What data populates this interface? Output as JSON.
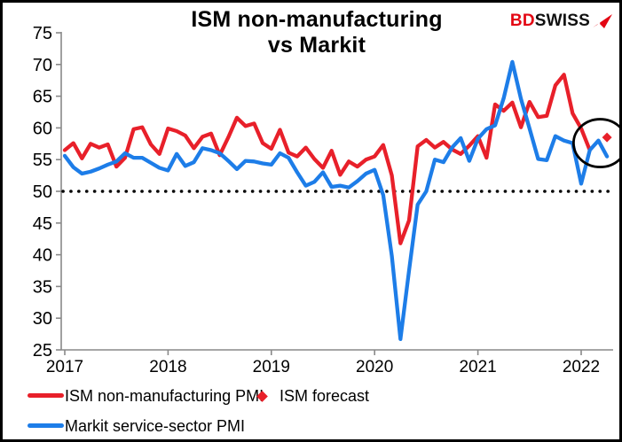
{
  "title": {
    "line1": "ISM non-manufacturing",
    "line2": "vs Markit"
  },
  "logo": {
    "part1": "BD",
    "part2": "SWISS",
    "arrow_icon": "red-swiss-arrow",
    "red": "#e30613"
  },
  "colors": {
    "ism_red": "#e8202a",
    "markit_blue": "#1d7de8",
    "axis_gray": "#898989",
    "reference_black": "#000000"
  },
  "legend": {
    "ism": {
      "label": "ISM non-manufacturing PMI"
    },
    "forecast": {
      "label": "ISM forecast"
    },
    "markit": {
      "label": "Markit service-sector PMI"
    }
  },
  "chart_data": {
    "type": "line",
    "title": "ISM non-manufacturing vs Markit",
    "frequency": "monthly",
    "x_start": "2017-01",
    "x_end": "2022-04",
    "x_tick_labels": [
      "2017",
      "2018",
      "2019",
      "2020",
      "2021",
      "2022"
    ],
    "y_ticks": [
      25,
      30,
      35,
      40,
      45,
      50,
      55,
      60,
      65,
      70,
      75
    ],
    "ylim": [
      25,
      75
    ],
    "grid": false,
    "legend_position": "bottom",
    "reference_line": {
      "value": 50,
      "style": "dotted",
      "color": "#000000"
    },
    "series": [
      {
        "name": "Markit service-sector PMI",
        "color": "#1d7de8",
        "values": [
          55.6,
          53.8,
          52.8,
          53.1,
          53.6,
          54.2,
          54.7,
          56.0,
          55.3,
          55.3,
          54.5,
          53.7,
          53.3,
          55.9,
          54.0,
          54.6,
          56.8,
          56.5,
          56.0,
          54.8,
          53.5,
          54.8,
          54.7,
          54.4,
          54.2,
          56.0,
          55.3,
          53.0,
          50.9,
          51.5,
          53.0,
          50.7,
          50.9,
          50.6,
          51.6,
          52.8,
          53.4,
          49.4,
          39.8,
          26.7,
          37.5,
          47.9,
          50.0,
          55.0,
          54.6,
          56.9,
          58.4,
          54.8,
          58.3,
          59.8,
          60.4,
          64.7,
          70.4,
          64.6,
          59.9,
          55.1,
          54.9,
          58.7,
          58.0,
          57.6,
          51.2,
          56.5,
          58.0,
          55.5
        ]
      },
      {
        "name": "ISM non-manufacturing PMI",
        "color": "#e8202a",
        "values": [
          56.5,
          57.6,
          55.2,
          57.5,
          56.9,
          57.4,
          53.9,
          55.3,
          59.8,
          60.1,
          57.4,
          55.9,
          59.9,
          59.5,
          58.8,
          56.8,
          58.6,
          59.1,
          55.7,
          58.5,
          61.6,
          60.3,
          60.7,
          57.6,
          56.7,
          59.7,
          56.1,
          55.5,
          56.9,
          55.1,
          53.7,
          56.4,
          52.6,
          54.7,
          53.9,
          55.0,
          55.5,
          57.3,
          52.5,
          41.8,
          45.4,
          57.1,
          58.1,
          56.9,
          57.8,
          56.6,
          55.9,
          57.2,
          58.7,
          55.3,
          63.7,
          62.7,
          64.0,
          60.1,
          64.1,
          61.7,
          61.9,
          66.7,
          68.4,
          62.3,
          59.9,
          56.5
        ]
      }
    ],
    "forecast_point": {
      "name": "ISM forecast",
      "month": "2022-04",
      "month_index": 63,
      "value": 58.5,
      "color": "#e8202a",
      "marker": "diamond"
    },
    "annotation_circle": {
      "center_month_index": 62,
      "center_value": 57.6,
      "radius_x_px": 30,
      "radius_y_px": 27,
      "stroke": "#000000"
    }
  }
}
